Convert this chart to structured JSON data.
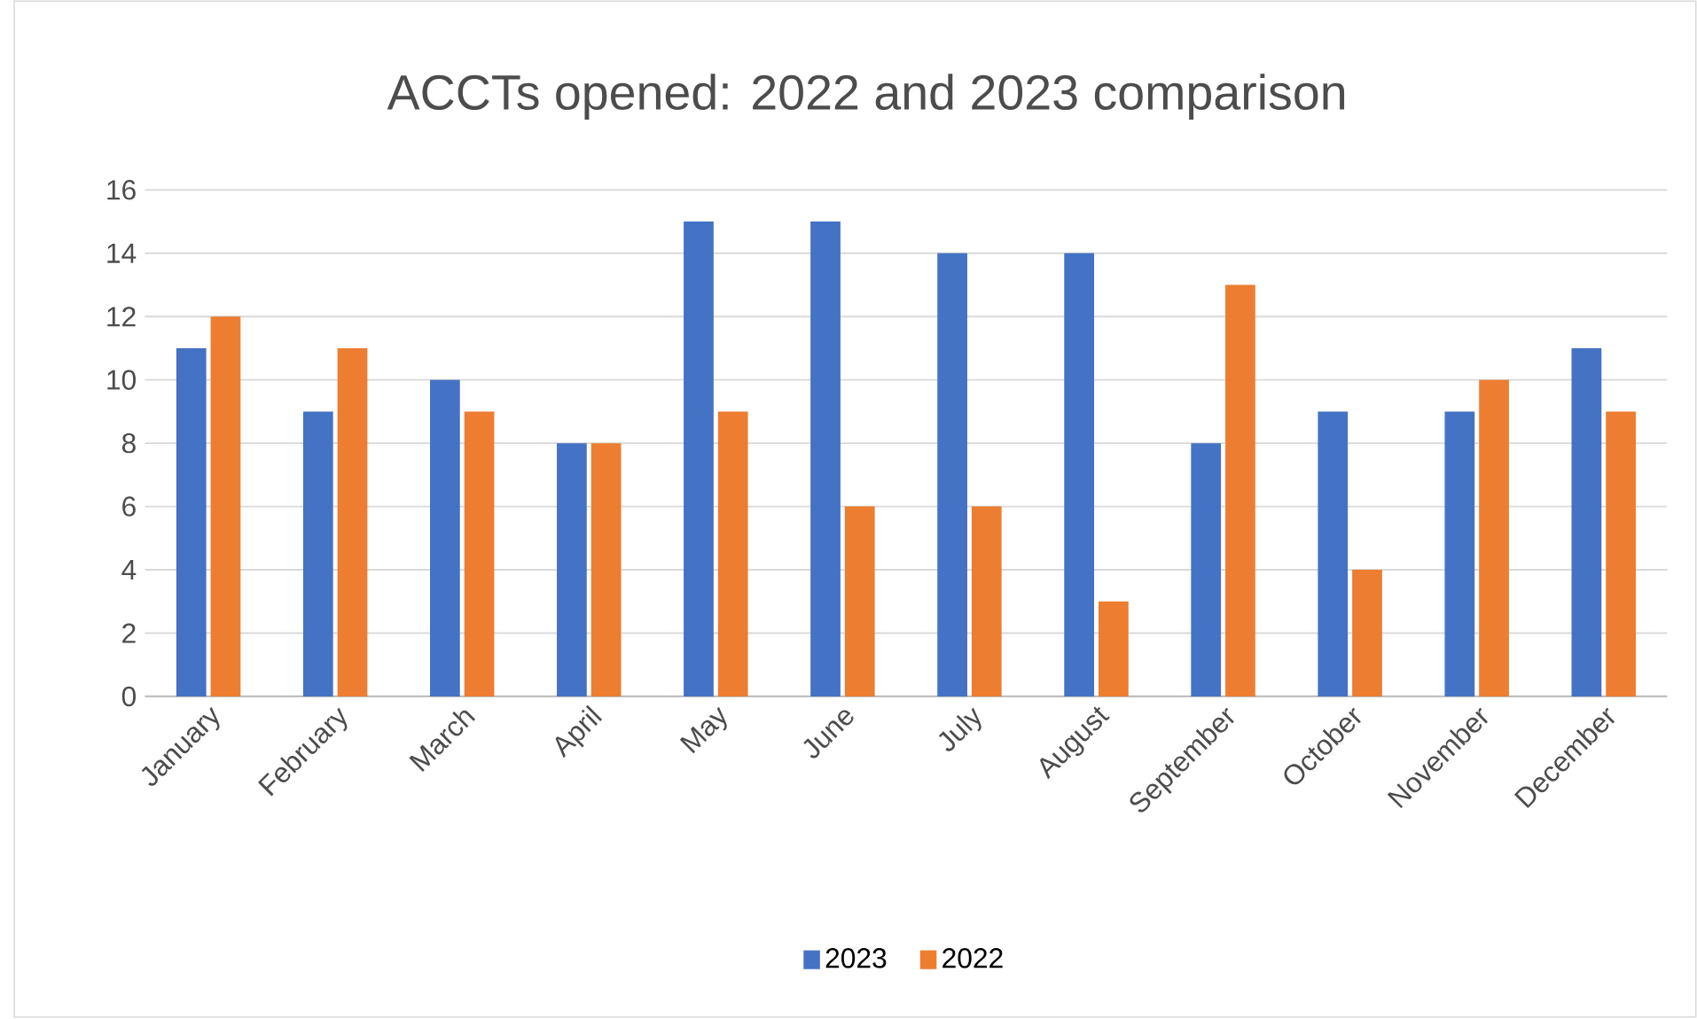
{
  "chart_data": {
    "type": "bar",
    "title": "ACCTs opened: 2022 and 2023 comparison",
    "categories": [
      "January",
      "February",
      "March",
      "April",
      "May",
      "June",
      "July",
      "August",
      "September",
      "October",
      "November",
      "December"
    ],
    "series": [
      {
        "name": "2023",
        "color": "#4472c4",
        "values": [
          11,
          9,
          10,
          8,
          15,
          15,
          14,
          14,
          8,
          9,
          9,
          11
        ]
      },
      {
        "name": "2022",
        "color": "#ed7d31",
        "values": [
          12,
          11,
          9,
          8,
          9,
          6,
          6,
          3,
          13,
          4,
          10,
          9
        ]
      }
    ],
    "ylim": [
      0,
      16
    ],
    "yticks": [
      0,
      2,
      4,
      6,
      8,
      10,
      12,
      14,
      16
    ],
    "grid": "y",
    "legend": "bottom"
  }
}
